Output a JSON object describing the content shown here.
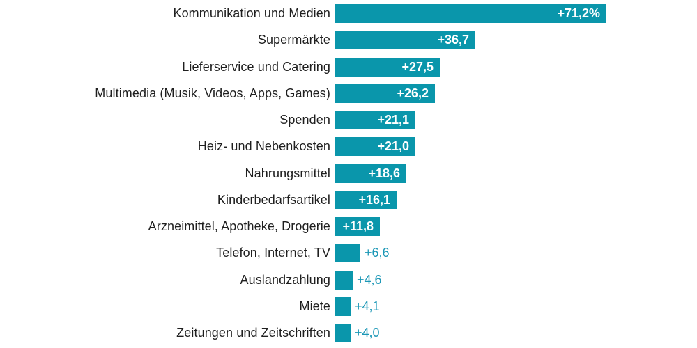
{
  "chart_data": {
    "type": "bar",
    "orientation": "horizontal",
    "title": "",
    "xlabel": "",
    "ylabel": "",
    "grid": false,
    "legend": "none",
    "xlim": [
      0,
      75
    ],
    "unit": "%",
    "decimal_separator": ",",
    "categories": [
      "Kommunikation und Medien",
      "Supermärkte",
      "Lieferservice und Catering",
      "Multimedia (Musik, Videos, Apps, Games)",
      "Spenden",
      "Heiz- und Nebenkosten",
      "Nahrungsmittel",
      "Kinderbedarfsartikel",
      "Arzneimittel, Apotheke, Drogerie",
      "Telefon, Internet, TV",
      "Auslandzahlung",
      "Miete",
      "Zeitungen und Zeitschriften"
    ],
    "values": [
      71.2,
      36.7,
      27.5,
      26.2,
      21.1,
      21.0,
      18.6,
      16.1,
      11.8,
      6.6,
      4.6,
      4.1,
      4.0
    ],
    "value_labels": [
      "+71,2%",
      "+36,7",
      "+27,5",
      "+26,2",
      "+21,1",
      "+21,0",
      "+18,6",
      "+16,1",
      "+11,8",
      "+6,6",
      "+4,6",
      "+4,1",
      "+4,0"
    ],
    "label_inside": [
      true,
      true,
      true,
      true,
      true,
      true,
      true,
      true,
      true,
      false,
      false,
      false,
      false
    ],
    "colors": {
      "bar": "#0a96ab",
      "value_inside": "#ffffff",
      "value_outside": "#1b97b6",
      "category_text": "#1f1f1f",
      "background": "#ffffff"
    }
  }
}
